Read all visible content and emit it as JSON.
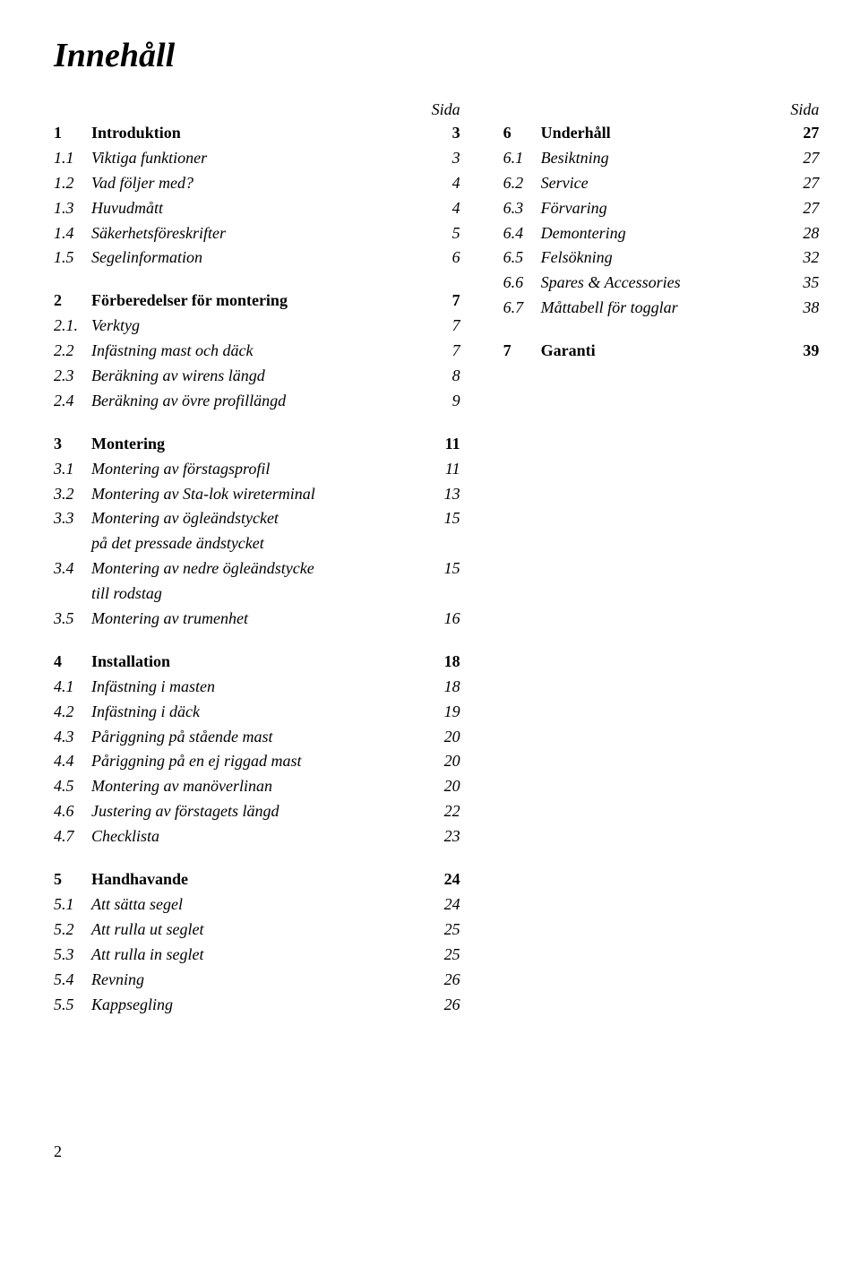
{
  "title": "Innehåll",
  "pageColHeader": "Sida",
  "footerPage": "2",
  "leftSections": [
    {
      "header": {
        "num": "1",
        "label": "Introduktion",
        "page": "3"
      },
      "items": [
        {
          "num": "1.1",
          "label": "Viktiga funktioner",
          "page": "3"
        },
        {
          "num": "1.2",
          "label": "Vad följer med?",
          "page": "4"
        },
        {
          "num": "1.3",
          "label": "Huvudmått",
          "page": "4"
        },
        {
          "num": "1.4",
          "label": "Säkerhetsföreskrifter",
          "page": "5"
        },
        {
          "num": "1.5",
          "label": "Segelinformation",
          "page": "6"
        }
      ]
    },
    {
      "header": {
        "num": "2",
        "label": "Förberedelser för montering",
        "page": "7"
      },
      "items": [
        {
          "num": "2.1.",
          "label": "Verktyg",
          "page": "7"
        },
        {
          "num": "2.2",
          "label": "Infästning mast och däck",
          "page": "7"
        },
        {
          "num": "2.3",
          "label": "Beräkning av wirens längd",
          "page": "8"
        },
        {
          "num": "2.4",
          "label": "Beräkning av övre profillängd",
          "page": "9"
        }
      ]
    },
    {
      "header": {
        "num": "3",
        "label": "Montering",
        "page": "11"
      },
      "items": [
        {
          "num": "3.1",
          "label": "Montering av förstagsprofil",
          "page": "11"
        },
        {
          "num": "3.2",
          "label": "Montering av Sta-lok wireterminal",
          "page": "13"
        },
        {
          "num": "3.3",
          "label": "Montering av ögleändstycket\npå det pressade ändstycket",
          "page": "15"
        },
        {
          "num": "3.4",
          "label": "Montering av nedre ögleändstycke\ntill rodstag",
          "page": "15"
        },
        {
          "num": "3.5",
          "label": "Montering av trumenhet",
          "page": "16"
        }
      ]
    },
    {
      "header": {
        "num": "4",
        "label": "Installation",
        "page": "18"
      },
      "items": [
        {
          "num": "4.1",
          "label": "Infästning i masten",
          "page": "18"
        },
        {
          "num": "4.2",
          "label": "Infästning i däck",
          "page": "19"
        },
        {
          "num": "4.3",
          "label": "Påriggning på stående mast",
          "page": "20"
        },
        {
          "num": "4.4",
          "label": "Påriggning på en ej riggad mast",
          "page": "20"
        },
        {
          "num": "4.5",
          "label": "Montering av manöverlinan",
          "page": "20"
        },
        {
          "num": "4.6",
          "label": "Justering av förstagets längd",
          "page": "22"
        },
        {
          "num": "4.7",
          "label": "Checklista",
          "page": "23"
        }
      ]
    },
    {
      "header": {
        "num": "5",
        "label": "Handhavande",
        "page": "24"
      },
      "items": [
        {
          "num": "5.1",
          "label": "Att sätta segel",
          "page": "24"
        },
        {
          "num": "5.2",
          "label": "Att rulla ut seglet",
          "page": "25"
        },
        {
          "num": "5.3",
          "label": "Att rulla in seglet",
          "page": "25"
        },
        {
          "num": "5.4",
          "label": "Revning",
          "page": "26"
        },
        {
          "num": "5.5",
          "label": "Kappsegling",
          "page": "26"
        }
      ]
    }
  ],
  "rightSections": [
    {
      "header": {
        "num": "6",
        "label": "Underhåll",
        "page": "27"
      },
      "items": [
        {
          "num": "6.1",
          "label": "Besiktning",
          "page": "27"
        },
        {
          "num": "6.2",
          "label": "Service",
          "page": "27"
        },
        {
          "num": "6.3",
          "label": "Förvaring",
          "page": "27"
        },
        {
          "num": "6.4",
          "label": "Demontering",
          "page": "28"
        },
        {
          "num": "6.5",
          "label": "Felsökning",
          "page": "32"
        },
        {
          "num": "6.6",
          "label": "Spares & Accessories",
          "page": "35"
        },
        {
          "num": "6.7",
          "label": "Måttabell för togglar",
          "page": "38"
        }
      ]
    },
    {
      "header": {
        "num": "7",
        "label": "Garanti",
        "page": "39"
      },
      "items": []
    }
  ]
}
